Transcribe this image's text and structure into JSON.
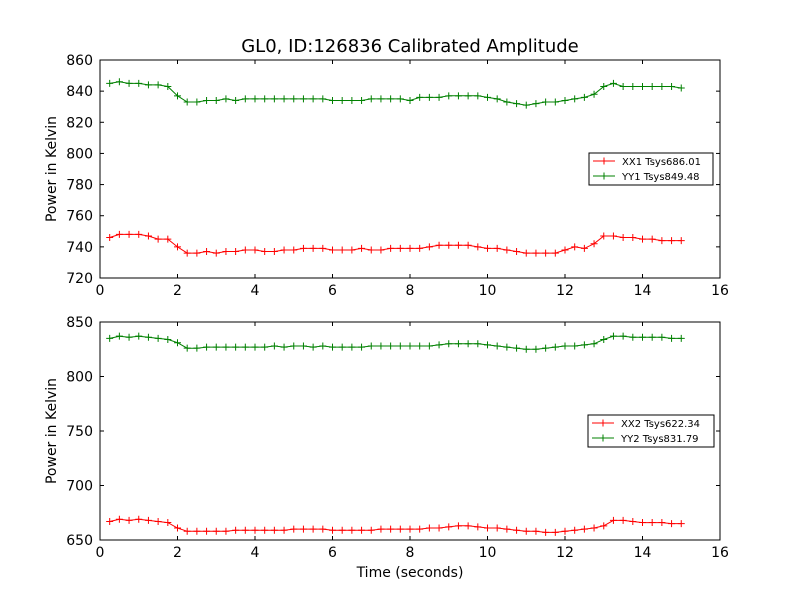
{
  "figure": {
    "title": "GL0, ID:126836 Calibrated Amplitude"
  },
  "colors": {
    "xx": "#ff0000",
    "yy": "#008000"
  },
  "chart_data": [
    {
      "type": "line",
      "ylabel": "Power in Kelvin",
      "xlabel": "",
      "xlim": [
        0,
        16
      ],
      "ylim": [
        720,
        860
      ],
      "xticks": [
        0,
        2,
        4,
        6,
        8,
        10,
        12,
        14,
        16
      ],
      "yticks": [
        720,
        740,
        760,
        780,
        800,
        820,
        840,
        860
      ],
      "legend_position": "center-right",
      "x": [
        0.25,
        0.5,
        0.75,
        1.0,
        1.25,
        1.5,
        1.75,
        2.0,
        2.25,
        2.5,
        2.75,
        3.0,
        3.25,
        3.5,
        3.75,
        4.0,
        4.25,
        4.5,
        4.75,
        5.0,
        5.25,
        5.5,
        5.75,
        6.0,
        6.25,
        6.5,
        6.75,
        7.0,
        7.25,
        7.5,
        7.75,
        8.0,
        8.25,
        8.5,
        8.75,
        9.0,
        9.25,
        9.5,
        9.75,
        10.0,
        10.25,
        10.5,
        10.75,
        11.0,
        11.25,
        11.5,
        11.75,
        12.0,
        12.25,
        12.5,
        12.75,
        13.0,
        13.25,
        13.5,
        13.75,
        14.0,
        14.25,
        14.5,
        14.75,
        15.0
      ],
      "series": [
        {
          "name": "XX1 Tsys686.01",
          "color": "#ff0000",
          "values": [
            746,
            748,
            748,
            748,
            747,
            745,
            745,
            740,
            736,
            736,
            737,
            736,
            737,
            737,
            738,
            738,
            737,
            737,
            738,
            738,
            739,
            739,
            739,
            738,
            738,
            738,
            739,
            738,
            738,
            739,
            739,
            739,
            739,
            740,
            741,
            741,
            741,
            741,
            740,
            739,
            739,
            738,
            737,
            736,
            736,
            736,
            736,
            738,
            740,
            739,
            742,
            747,
            747,
            746,
            746,
            745,
            745,
            744,
            744,
            744
          ]
        },
        {
          "name": "YY1 Tsys849.48",
          "color": "#008000",
          "values": [
            845,
            846,
            845,
            845,
            844,
            844,
            843,
            837,
            833,
            833,
            834,
            834,
            835,
            834,
            835,
            835,
            835,
            835,
            835,
            835,
            835,
            835,
            835,
            834,
            834,
            834,
            834,
            835,
            835,
            835,
            835,
            834,
            836,
            836,
            836,
            837,
            837,
            837,
            837,
            836,
            835,
            833,
            832,
            831,
            832,
            833,
            833,
            834,
            835,
            836,
            838,
            843,
            845,
            843,
            843,
            843,
            843,
            843,
            843,
            842
          ]
        }
      ]
    },
    {
      "type": "line",
      "ylabel": "Power in Kelvin",
      "xlabel": "Time (seconds)",
      "xlim": [
        0,
        16
      ],
      "ylim": [
        650,
        850
      ],
      "xticks": [
        0,
        2,
        4,
        6,
        8,
        10,
        12,
        14,
        16
      ],
      "yticks": [
        650,
        700,
        750,
        800,
        850
      ],
      "legend_position": "center-right",
      "x": [
        0.25,
        0.5,
        0.75,
        1.0,
        1.25,
        1.5,
        1.75,
        2.0,
        2.25,
        2.5,
        2.75,
        3.0,
        3.25,
        3.5,
        3.75,
        4.0,
        4.25,
        4.5,
        4.75,
        5.0,
        5.25,
        5.5,
        5.75,
        6.0,
        6.25,
        6.5,
        6.75,
        7.0,
        7.25,
        7.5,
        7.75,
        8.0,
        8.25,
        8.5,
        8.75,
        9.0,
        9.25,
        9.5,
        9.75,
        10.0,
        10.25,
        10.5,
        10.75,
        11.0,
        11.25,
        11.5,
        11.75,
        12.0,
        12.25,
        12.5,
        12.75,
        13.0,
        13.25,
        13.5,
        13.75,
        14.0,
        14.25,
        14.5,
        14.75,
        15.0
      ],
      "series": [
        {
          "name": "XX2 Tsys622.34",
          "color": "#ff0000",
          "values": [
            667,
            669,
            668,
            669,
            668,
            667,
            666,
            661,
            658,
            658,
            658,
            658,
            658,
            659,
            659,
            659,
            659,
            659,
            659,
            660,
            660,
            660,
            660,
            659,
            659,
            659,
            659,
            659,
            660,
            660,
            660,
            660,
            660,
            661,
            661,
            662,
            663,
            663,
            662,
            661,
            661,
            660,
            659,
            658,
            658,
            657,
            657,
            658,
            659,
            660,
            661,
            663,
            668,
            668,
            667,
            666,
            666,
            666,
            665,
            665
          ]
        },
        {
          "name": "YY2 Tsys831.79",
          "color": "#008000",
          "values": [
            835,
            837,
            836,
            837,
            836,
            835,
            834,
            831,
            826,
            826,
            827,
            827,
            827,
            827,
            827,
            827,
            827,
            828,
            827,
            828,
            828,
            827,
            828,
            827,
            827,
            827,
            827,
            828,
            828,
            828,
            828,
            828,
            828,
            828,
            829,
            830,
            830,
            830,
            830,
            829,
            828,
            827,
            826,
            825,
            825,
            826,
            827,
            828,
            828,
            829,
            830,
            834,
            837,
            837,
            836,
            836,
            836,
            836,
            835,
            835
          ]
        }
      ]
    }
  ]
}
